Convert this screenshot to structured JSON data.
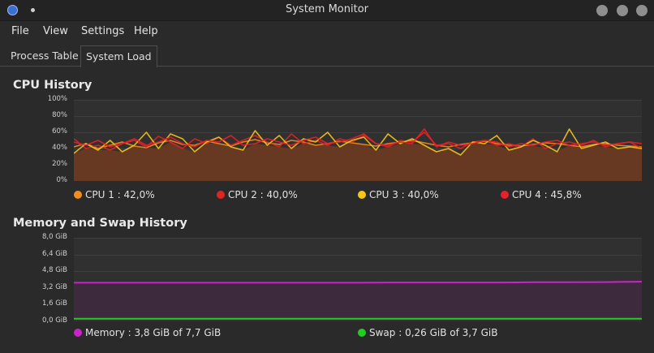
{
  "window": {
    "title": "System Monitor"
  },
  "menu": [
    "File",
    "View",
    "Settings",
    "Help"
  ],
  "tabs": [
    {
      "label": "Process Table",
      "active": false
    },
    {
      "label": "System Load",
      "active": true
    }
  ],
  "cpu": {
    "title": "CPU History",
    "y_ticks": [
      "100%",
      "80%",
      "60%",
      "40%",
      "20%",
      "0%"
    ],
    "legend": [
      {
        "label": "CPU 1 : 42,0%",
        "color": "#f28c1e"
      },
      {
        "label": "CPU 2 : 40,0%",
        "color": "#e02424"
      },
      {
        "label": "CPU 3 : 40,0%",
        "color": "#f5c518"
      },
      {
        "label": "CPU 4 : 45,8%",
        "color": "#e8202a"
      }
    ]
  },
  "memory": {
    "title": "Memory and Swap History",
    "y_ticks": [
      "8,0 GiB",
      "6,4 GiB",
      "4,8 GiB",
      "3,2 GiB",
      "1,6 GiB",
      "0,0 GiB"
    ],
    "legend": [
      {
        "label": "Memory : 3,8 GiB of 7,7 GiB",
        "color": "#cc22cc"
      },
      {
        "label": "Swap : 0,26 GiB of 3,7 GiB",
        "color": "#22cc22"
      }
    ]
  },
  "chart_data": [
    {
      "type": "line",
      "title": "CPU History",
      "ylim": [
        0,
        100
      ],
      "y_unit": "%",
      "grid": true,
      "legend_position": "bottom",
      "series": [
        {
          "name": "CPU 1 : 42,0%",
          "color": "#f28c1e",
          "values": [
            42,
            46,
            40,
            44,
            48,
            43,
            41,
            47,
            50,
            45,
            44,
            49,
            46,
            43,
            48,
            51,
            47,
            45,
            50,
            48,
            44,
            46,
            49,
            47,
            45,
            43,
            46,
            48,
            50,
            47,
            44,
            42,
            45,
            47,
            49,
            46,
            44,
            43,
            45,
            47,
            46,
            44,
            42,
            45,
            46,
            44,
            43,
            42
          ]
        },
        {
          "name": "CPU 2 : 40,0%",
          "color": "#e02424",
          "values": [
            52,
            40,
            44,
            38,
            46,
            50,
            42,
            55,
            48,
            40,
            52,
            46,
            54,
            44,
            50,
            56,
            48,
            42,
            58,
            46,
            50,
            44,
            52,
            48,
            56,
            46,
            42,
            50,
            48,
            60,
            44,
            46,
            40,
            48,
            50,
            44,
            46,
            42,
            52,
            40,
            46,
            48,
            44,
            50,
            42,
            46,
            48,
            40
          ]
        },
        {
          "name": "CPU 3 : 40,0%",
          "color": "#f5c518",
          "values": [
            34,
            46,
            38,
            50,
            36,
            44,
            60,
            40,
            58,
            52,
            36,
            48,
            54,
            42,
            38,
            62,
            44,
            56,
            40,
            52,
            48,
            60,
            42,
            50,
            54,
            38,
            58,
            46,
            52,
            44,
            36,
            40,
            32,
            48,
            46,
            56,
            38,
            42,
            50,
            44,
            36,
            64,
            40,
            44,
            48,
            40,
            42,
            40
          ]
        },
        {
          "name": "CPU 4 : 45,8%",
          "color": "#e8202a",
          "values": [
            48,
            44,
            50,
            42,
            46,
            52,
            44,
            48,
            54,
            46,
            42,
            50,
            48,
            56,
            44,
            46,
            52,
            48,
            44,
            50,
            54,
            46,
            48,
            52,
            58,
            46,
            44,
            48,
            46,
            64,
            42,
            48,
            44,
            46,
            50,
            48,
            42,
            46,
            44,
            48,
            50,
            44,
            46,
            48,
            44,
            46,
            48,
            46
          ]
        }
      ]
    },
    {
      "type": "line",
      "title": "Memory and Swap History",
      "ylim": [
        0,
        8.0
      ],
      "y_unit": "GiB",
      "grid": true,
      "legend_position": "bottom",
      "series": [
        {
          "name": "Memory : 3,8 GiB of 7,7 GiB",
          "color": "#cc22cc",
          "values": [
            3.7,
            3.7,
            3.7,
            3.7,
            3.7,
            3.7,
            3.7,
            3.7,
            3.7,
            3.72,
            3.72,
            3.72,
            3.72,
            3.74,
            3.75,
            3.76,
            3.8
          ]
        },
        {
          "name": "Swap : 0,26 GiB of 3,7 GiB",
          "color": "#22cc22",
          "values": [
            0.26,
            0.26,
            0.26,
            0.26,
            0.26,
            0.26,
            0.26,
            0.26,
            0.26,
            0.26,
            0.26,
            0.26,
            0.26,
            0.26,
            0.26,
            0.26,
            0.26
          ]
        }
      ]
    }
  ]
}
